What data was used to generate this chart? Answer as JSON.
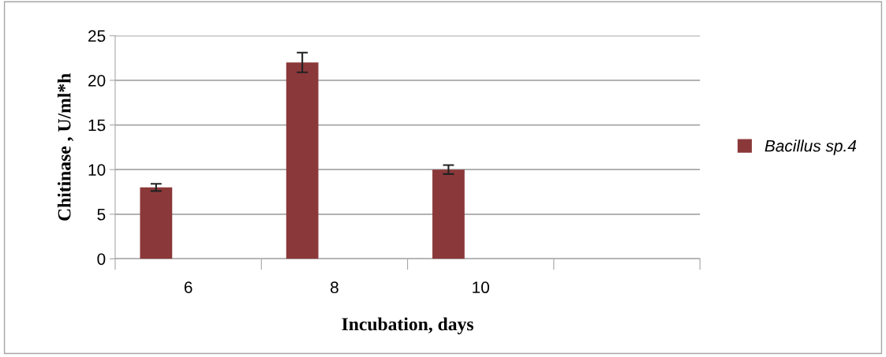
{
  "chart_data": {
    "type": "bar",
    "xlabel": "Incubation, days",
    "ylabel": "Chitinase , U/ml*h",
    "categories": [
      "6",
      "8",
      "10",
      null
    ],
    "series": [
      {
        "name": "Bacillus sp.4",
        "color": "#8b383a",
        "values": [
          8,
          22,
          10,
          null
        ],
        "errors": [
          0.4,
          1.1,
          0.5,
          null
        ]
      }
    ],
    "ylim": [
      0,
      25
    ],
    "yticks": [
      0,
      5,
      10,
      15,
      20,
      25
    ],
    "grid": "y",
    "legend": "right"
  }
}
